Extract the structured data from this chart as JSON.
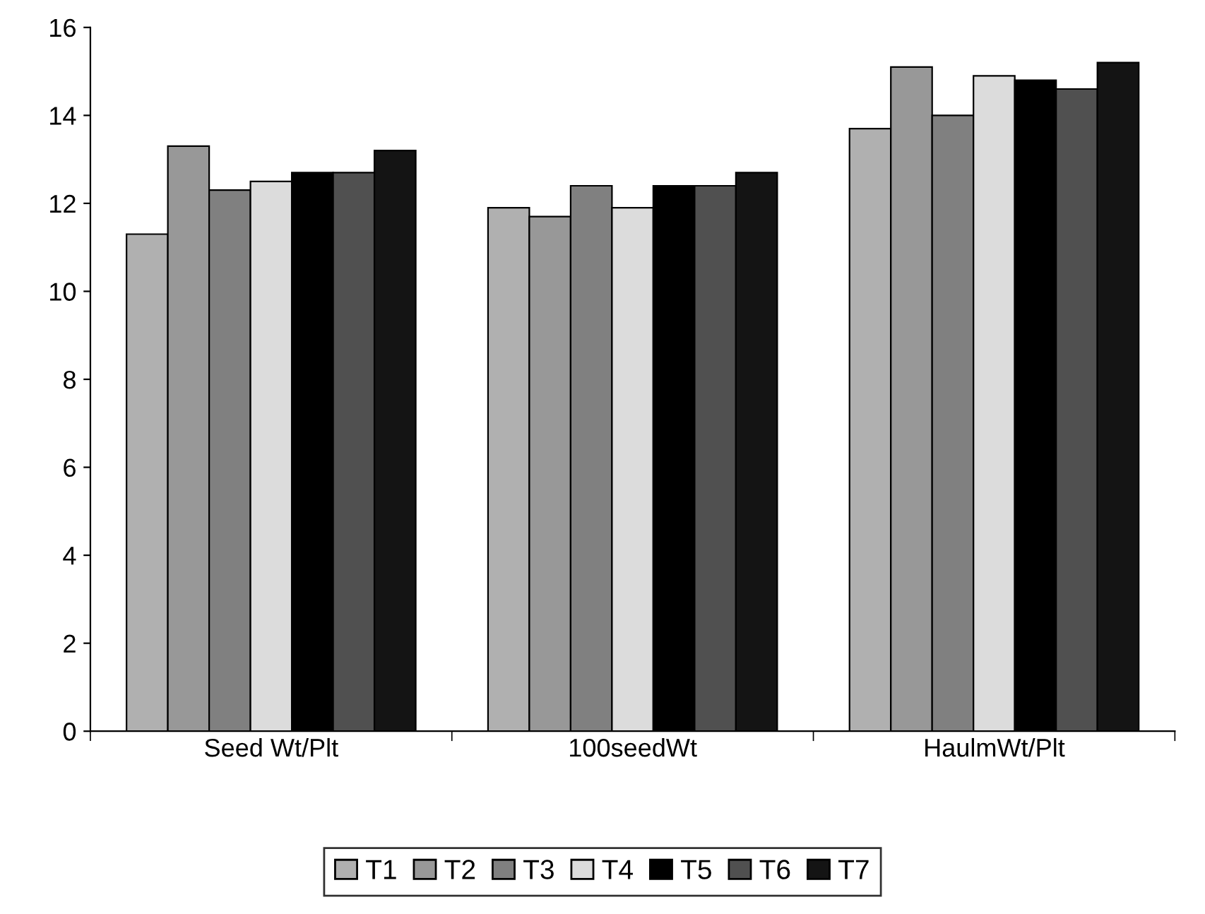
{
  "chart_data": {
    "type": "bar",
    "categories": [
      "Seed Wt/Plt",
      "100seedWt",
      "HaulmWt/Plt"
    ],
    "series": [
      {
        "name": "T1",
        "color": "#b0b0b0",
        "values": [
          11.3,
          11.9,
          13.7
        ]
      },
      {
        "name": "T2",
        "color": "#989898",
        "values": [
          13.3,
          11.7,
          15.1
        ]
      },
      {
        "name": "T3",
        "color": "#808080",
        "values": [
          12.3,
          12.4,
          14.0
        ]
      },
      {
        "name": "T4",
        "color": "#dcdcdc",
        "values": [
          12.5,
          11.9,
          14.9
        ]
      },
      {
        "name": "T5",
        "color": "#000000",
        "values": [
          12.7,
          12.4,
          14.8
        ]
      },
      {
        "name": "T6",
        "color": "#505050",
        "values": [
          12.7,
          12.4,
          14.6
        ]
      },
      {
        "name": "T7",
        "color": "#141414",
        "values": [
          13.2,
          12.7,
          15.2
        ]
      }
    ],
    "ylim": [
      0,
      16
    ],
    "yticks": [
      0,
      2,
      4,
      6,
      8,
      10,
      12,
      14,
      16
    ],
    "grid": false,
    "legend": "bottom"
  }
}
